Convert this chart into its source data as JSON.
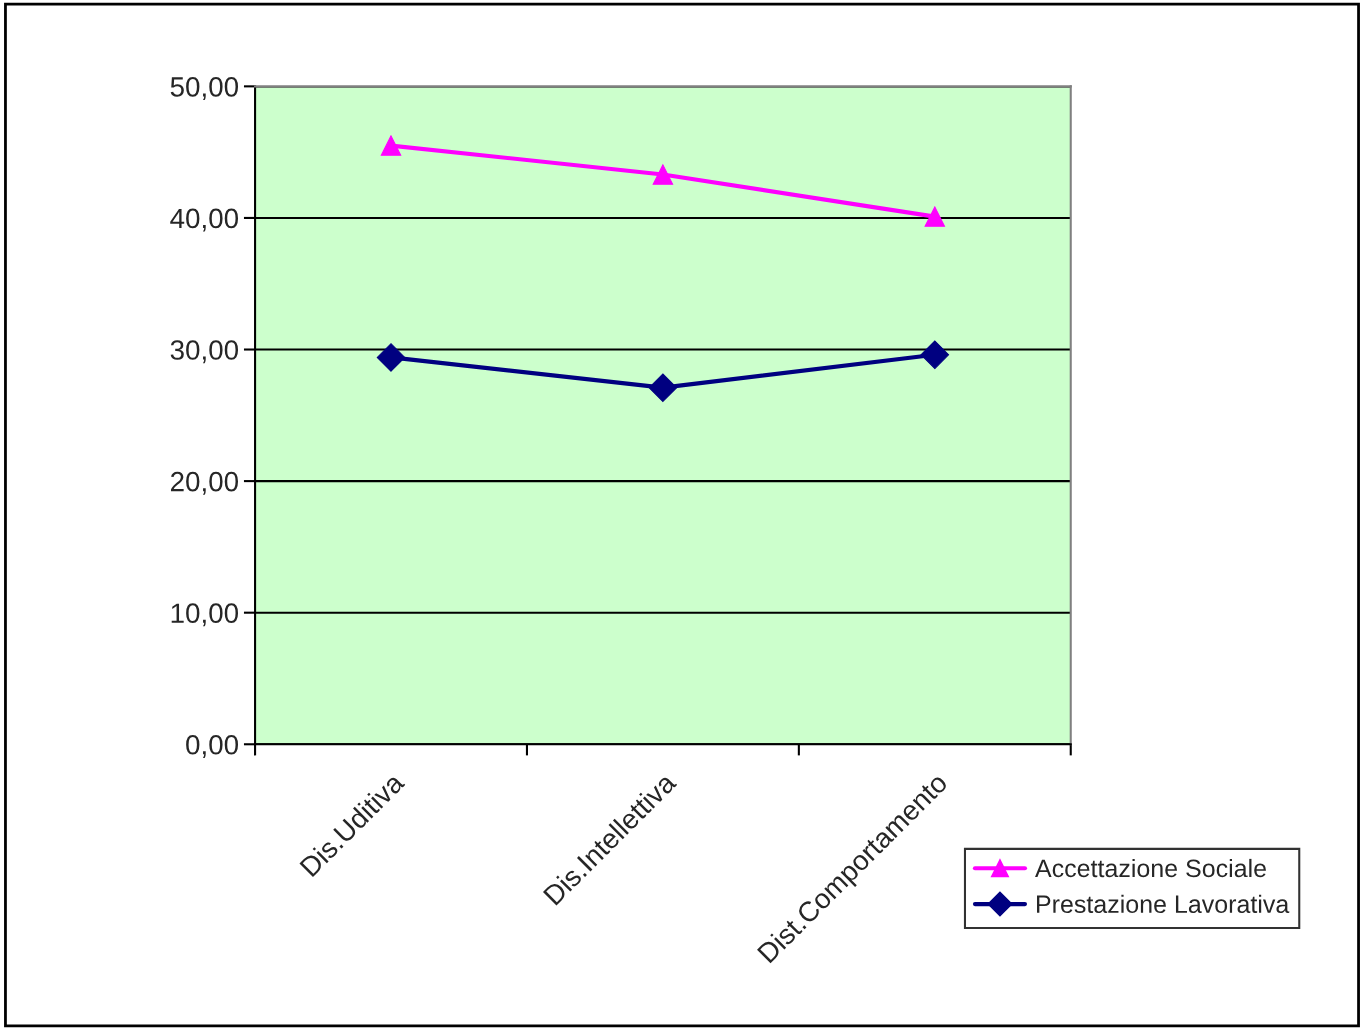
{
  "chart_data": {
    "type": "line",
    "categories": [
      "Dis.Uditiva",
      "Dis.Intellettiva",
      "Dist.Comportamento"
    ],
    "series": [
      {
        "name": "Accettazione Sociale",
        "color": "#ff00ff",
        "marker": "triangle",
        "values": [
          45.5,
          43.3,
          40.1
        ]
      },
      {
        "name": "Prestazione Lavorativa",
        "color": "#000080",
        "marker": "diamond",
        "values": [
          29.4,
          27.1,
          29.6
        ]
      }
    ],
    "ylim": [
      0,
      50
    ],
    "yticks": [
      {
        "value": 0,
        "label": "0,00"
      },
      {
        "value": 10,
        "label": "10,00"
      },
      {
        "value": 20,
        "label": "20,00"
      },
      {
        "value": 30,
        "label": "30,00"
      },
      {
        "value": 40,
        "label": "40,00"
      },
      {
        "value": 50,
        "label": "50,00"
      }
    ],
    "grid": "y",
    "legend": "bottom right",
    "line_style": "solid"
  }
}
